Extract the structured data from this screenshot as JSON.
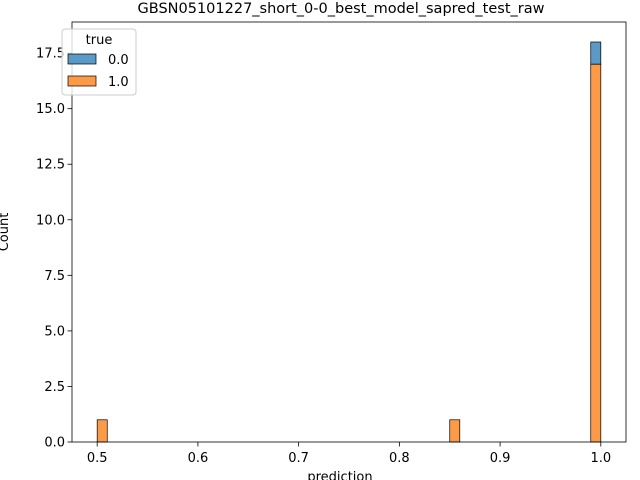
{
  "chart_data": {
    "type": "bar",
    "subtype": "stacked-histogram",
    "title": "GBSN05101227_short_0-0_best_model_sapred_test_raw",
    "xlabel": "prediction",
    "ylabel": "Count",
    "xlim": [
      0.475,
      1.025
    ],
    "ylim": [
      0,
      18.9
    ],
    "xticks": [
      0.5,
      0.6,
      0.7,
      0.8,
      0.9,
      1.0
    ],
    "xtick_labels": [
      "0.5",
      "0.6",
      "0.7",
      "0.8",
      "0.9",
      "1.0"
    ],
    "yticks": [
      0,
      2.5,
      5,
      7.5,
      10,
      12.5,
      15,
      17.5
    ],
    "ytick_labels": [
      "0.0",
      "2.5",
      "5.0",
      "7.5",
      "10.0",
      "12.5",
      "15.0",
      "17.5"
    ],
    "grid": false,
    "legend": {
      "title": "true",
      "placement": "top-left",
      "entries": [
        "0.0",
        "1.0"
      ]
    },
    "series": [
      {
        "name": "0.0",
        "color": "#1f77b4",
        "fill": "#5b99c6",
        "bins": [
          {
            "x0": 0.99,
            "x1": 1.0,
            "bottom": 17,
            "value": 1
          }
        ]
      },
      {
        "name": "1.0",
        "color": "#ff7f0e",
        "fill": "#fd9a47",
        "bins": [
          {
            "x0": 0.5,
            "x1": 0.51,
            "bottom": 0,
            "value": 1
          },
          {
            "x0": 0.85,
            "x1": 0.86,
            "bottom": 0,
            "value": 1
          },
          {
            "x0": 0.99,
            "x1": 1.0,
            "bottom": 0,
            "value": 17
          }
        ]
      }
    ]
  }
}
